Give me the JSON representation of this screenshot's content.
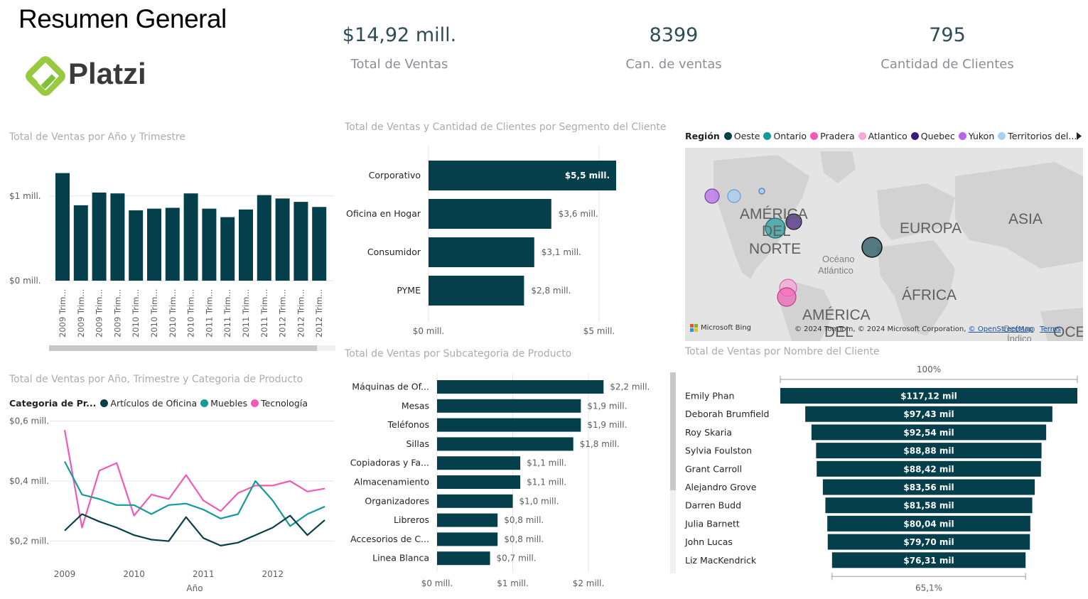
{
  "header": {
    "title": "Resumen General",
    "logo_text": "Platzi"
  },
  "kpis": [
    {
      "value": "$14,92 mill.",
      "label": "Total de Ventas"
    },
    {
      "value": "8399",
      "label": "Can. de ventas"
    },
    {
      "value": "795",
      "label": "Cantidad de Clientes"
    }
  ],
  "colors": {
    "primary": "#063f4c",
    "articulos": "#063f4c",
    "muebles": "#159a9a",
    "tecnologia": "#f25bb5"
  },
  "chart_data": [
    {
      "id": "ventas_anio_trimestre",
      "type": "bar",
      "title": "Total de Ventas por Año y Trimestre",
      "categories": [
        "2009 Trim...",
        "2009 Trim...",
        "2009 Trim...",
        "2009 Trim...",
        "2010 Trim...",
        "2010 Trim...",
        "2010 Trim...",
        "2010 Trim...",
        "2011 Trim...",
        "2011 Trim...",
        "2011 Trim...",
        "2011 Trim...",
        "2012 Trim...",
        "2012 Trim...",
        "2012 Trim..."
      ],
      "values": [
        1.27,
        0.89,
        1.04,
        1.03,
        0.83,
        0.85,
        0.86,
        1.03,
        0.85,
        0.75,
        0.84,
        1.01,
        0.97,
        0.93,
        0.87
      ],
      "y_ticks": [
        {
          "value": 0,
          "label": "$0 mill."
        },
        {
          "value": 1,
          "label": "$1 mill."
        }
      ],
      "ylim": [
        0,
        1.3
      ]
    },
    {
      "id": "ventas_segmento",
      "type": "bar",
      "orientation": "horizontal",
      "title": "Total de Ventas y Cantidad de Clientes por Segmento del Cliente",
      "categories": [
        "Corporativo",
        "Oficina en Hogar",
        "Consumidor",
        "PYME"
      ],
      "values": [
        5.5,
        3.6,
        3.1,
        2.8
      ],
      "data_labels": [
        "$5,5 mill.",
        "$3,6 mill.",
        "$3,1 mill.",
        "$2,8 mill."
      ],
      "x_ticks": [
        {
          "value": 0,
          "label": "$0 mill."
        },
        {
          "value": 5,
          "label": "$5 mill."
        }
      ],
      "xlim": [
        0,
        5.5
      ]
    },
    {
      "id": "ventas_categoria_linea",
      "type": "line",
      "title": "Total de Ventas por Año, Trimestre y Categoria de Producto",
      "legend_title": "Categoria de Pr...",
      "xlabel": "Año",
      "x_ticks": [
        "2009",
        "2010",
        "2011",
        "2012"
      ],
      "x": [
        2009.0,
        2009.25,
        2009.5,
        2009.75,
        2010.0,
        2010.25,
        2010.5,
        2010.75,
        2011.0,
        2011.25,
        2011.5,
        2011.75,
        2012.0,
        2012.25,
        2012.5,
        2012.75
      ],
      "series": [
        {
          "name": "Artículos de Oficina",
          "color": "#063f4c",
          "values": [
            0.235,
            0.29,
            0.265,
            0.245,
            0.22,
            0.205,
            0.2,
            0.28,
            0.21,
            0.185,
            0.195,
            0.22,
            0.245,
            0.285,
            0.22,
            0.27
          ]
        },
        {
          "name": "Muebles",
          "color": "#159a9a",
          "values": [
            0.465,
            0.355,
            0.34,
            0.32,
            0.32,
            0.29,
            0.32,
            0.325,
            0.305,
            0.275,
            0.29,
            0.4,
            0.335,
            0.25,
            0.29,
            0.315
          ]
        },
        {
          "name": "Tecnología",
          "color": "#f25bb5",
          "values": [
            0.57,
            0.245,
            0.435,
            0.46,
            0.285,
            0.355,
            0.34,
            0.42,
            0.335,
            0.3,
            0.36,
            0.385,
            0.385,
            0.4,
            0.365,
            0.375
          ]
        }
      ],
      "y_ticks": [
        {
          "value": 0.2,
          "label": "$0,2 mill."
        },
        {
          "value": 0.4,
          "label": "$0,4 mill."
        },
        {
          "value": 0.6,
          "label": "$0,6 mill."
        }
      ],
      "ylim": [
        0.18,
        0.62
      ]
    },
    {
      "id": "ventas_subcategoria",
      "type": "bar",
      "orientation": "horizontal",
      "title": "Total de Ventas por Subcategoria de Producto",
      "categories": [
        "Máquinas de Of...",
        "Mesas",
        "Teléfonos",
        "Sillas",
        "Copiadoras y Fa...",
        "Almacenamiento",
        "Organizadores",
        "Libreros",
        "Accesorios de C...",
        "Linea Blanca"
      ],
      "values": [
        2.2,
        1.9,
        1.9,
        1.8,
        1.1,
        1.1,
        1.0,
        0.8,
        0.8,
        0.7
      ],
      "data_labels": [
        "$2,2 mill.",
        "$1,9 mill.",
        "$1,9 mill.",
        "$1,8 mill.",
        "$1,1 mill.",
        "$1,1 mill.",
        "$1,0 mill.",
        "$0,8 mill.",
        "$0,8 mill.",
        "$0,7 mill."
      ],
      "x_ticks": [
        {
          "value": 0,
          "label": "$0 mill."
        },
        {
          "value": 1,
          "label": "$1 mill."
        },
        {
          "value": 2,
          "label": "$2 mill."
        }
      ],
      "xlim": [
        0,
        2.2
      ]
    },
    {
      "id": "ventas_cliente_embudo",
      "type": "bar",
      "subtype": "funnel",
      "title": "Total de Ventas por Nombre del Cliente",
      "categories": [
        "Emily Phan",
        "Deborah Brumfield",
        "Roy Skaria",
        "Sylvia Foulston",
        "Grant Carroll",
        "Alejandro Grove",
        "Darren Budd",
        "Julia Barnett",
        "John Lucas",
        "Liz MacKendrick"
      ],
      "values": [
        117.12,
        97.43,
        92.54,
        88.88,
        88.42,
        83.56,
        81.58,
        80.04,
        79.7,
        76.31
      ],
      "data_labels": [
        "$117,12 mil",
        "$97,43 mil",
        "$92,54 mil",
        "$88,88 mil",
        "$88,42 mil",
        "$83,56 mil",
        "$81,58 mil",
        "$80,04 mil",
        "$79,70 mil",
        "$76,31 mil"
      ],
      "top_percent_label": "100%",
      "bottom_percent_label": "65,1%"
    }
  ],
  "map": {
    "legend_title": "Región",
    "legend_items": [
      {
        "name": "Oeste",
        "color": "#063f4c"
      },
      {
        "name": "Ontario",
        "color": "#159a9a"
      },
      {
        "name": "Pradera",
        "color": "#f25bb5"
      },
      {
        "name": "Atlantico",
        "color": "#f7a8d6"
      },
      {
        "name": "Quebec",
        "color": "#3d1a78"
      },
      {
        "name": "Yukon",
        "color": "#b566e8"
      },
      {
        "name": "Territorios del...",
        "color": "#a8d0f0"
      }
    ],
    "labels": {
      "america_norte_1": "AMÉRICA",
      "america_norte_2": "DEL",
      "america_norte_3": "NORTE",
      "europa": "EUROPA",
      "asia": "ASIA",
      "africa": "ÁFRICA",
      "america_sur_1": "AMÉRICA",
      "america_sur_2": "DEL",
      "oceano_1": "Océano",
      "oceano_2": "Atlántico",
      "oceano_indico_1": "Océano",
      "oceano_indico_2": "Índico",
      "ocea": "OCEA"
    },
    "bing": "Microsoft Bing",
    "copyright": "© 2024 TomTom, © 2024 Microsoft Corporation,",
    "osm": "© OpenStreetMap",
    "terms": "Terms"
  }
}
